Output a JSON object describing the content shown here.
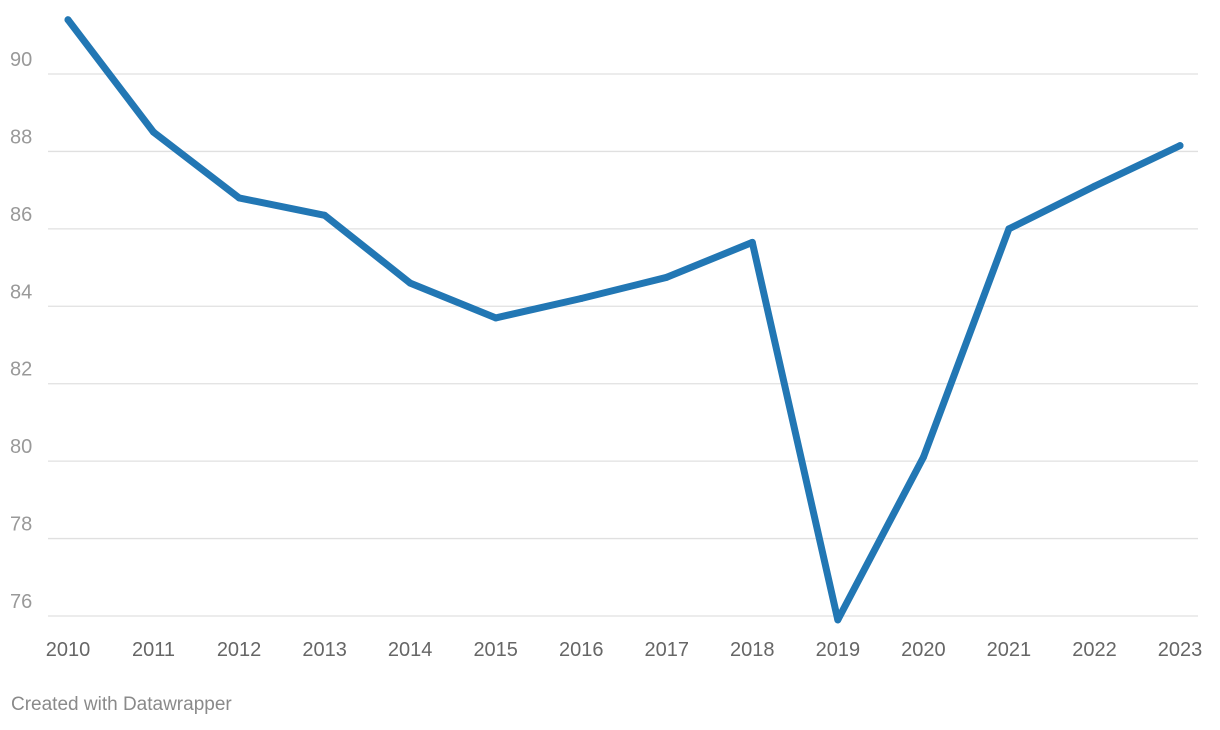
{
  "chart_data": {
    "type": "line",
    "title": "",
    "xlabel": "",
    "ylabel": "",
    "x": [
      "2010",
      "2011",
      "2012",
      "2013",
      "2014",
      "2015",
      "2016",
      "2017",
      "2018",
      "2019",
      "2020",
      "2021",
      "2022",
      "2023"
    ],
    "series": [
      {
        "color": "#2277b4",
        "values": [
          91.4,
          88.5,
          86.8,
          86.35,
          84.6,
          83.7,
          84.2,
          84.75,
          85.65,
          75.9,
          80.1,
          86.0,
          87.1,
          88.15
        ]
      }
    ],
    "ylim": [
      76,
      91.4
    ],
    "yticks": [
      "76",
      "78",
      "80",
      "82",
      "84",
      "86",
      "88",
      "90"
    ],
    "grid": true,
    "legend": "none"
  },
  "footer": {
    "credit": "Created with Datawrapper"
  }
}
